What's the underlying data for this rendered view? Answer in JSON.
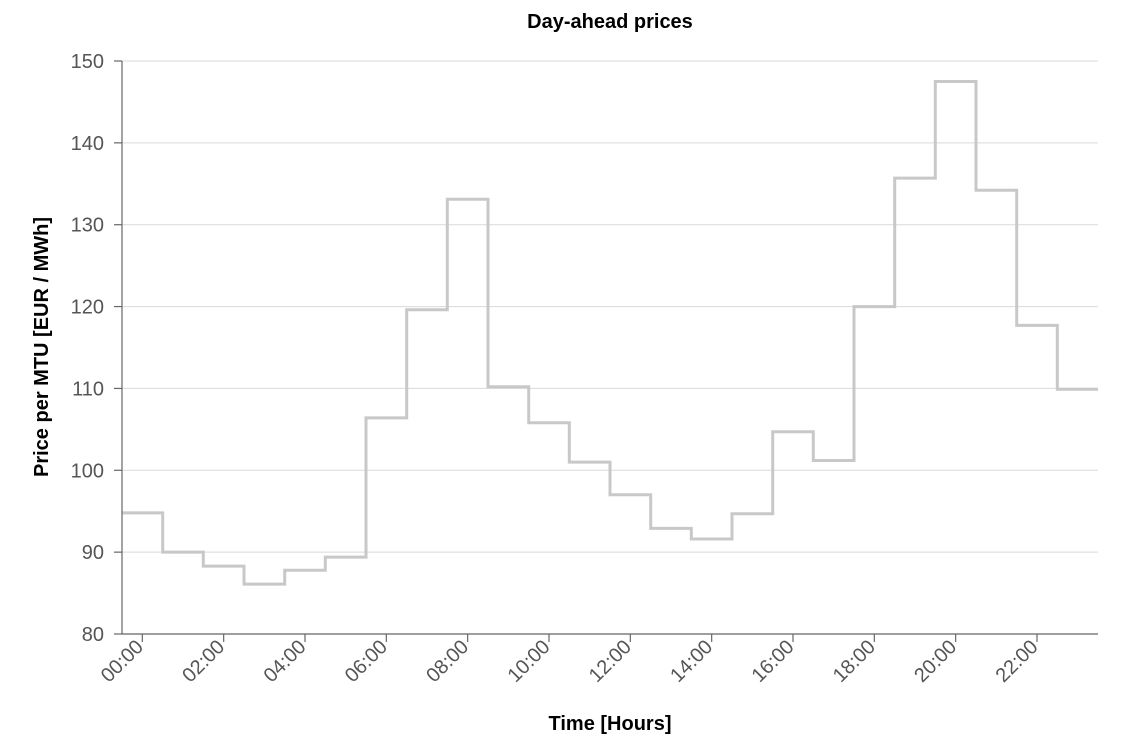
{
  "chart_data": {
    "type": "line",
    "step": true,
    "title": "Day-ahead prices",
    "xlabel": "Time [Hours]",
    "ylabel": "Price per MTU [EUR / MWh]",
    "xlim": [
      "00:00",
      "24:00"
    ],
    "ylim": [
      80,
      150
    ],
    "yticks": [
      80,
      90,
      100,
      110,
      120,
      130,
      140,
      150
    ],
    "xticks": [
      "00:00",
      "02:00",
      "04:00",
      "06:00",
      "08:00",
      "10:00",
      "12:00",
      "14:00",
      "16:00",
      "18:00",
      "20:00",
      "22:00"
    ],
    "grid": "horizontal",
    "series": [
      {
        "color": "#c8c8c8",
        "x": [
          "00:00",
          "01:00",
          "02:00",
          "03:00",
          "04:00",
          "05:00",
          "06:00",
          "07:00",
          "08:00",
          "09:00",
          "10:00",
          "11:00",
          "12:00",
          "13:00",
          "14:00",
          "15:00",
          "16:00",
          "17:00",
          "18:00",
          "19:00",
          "20:00",
          "21:00",
          "22:00",
          "23:00"
        ],
        "values": [
          94.8,
          90.0,
          88.3,
          86.1,
          87.8,
          89.4,
          106.4,
          119.6,
          133.1,
          110.2,
          105.8,
          101.0,
          97.0,
          92.9,
          91.6,
          94.7,
          104.7,
          101.2,
          120.0,
          135.7,
          147.5,
          134.2,
          117.7,
          109.9
        ]
      }
    ]
  }
}
